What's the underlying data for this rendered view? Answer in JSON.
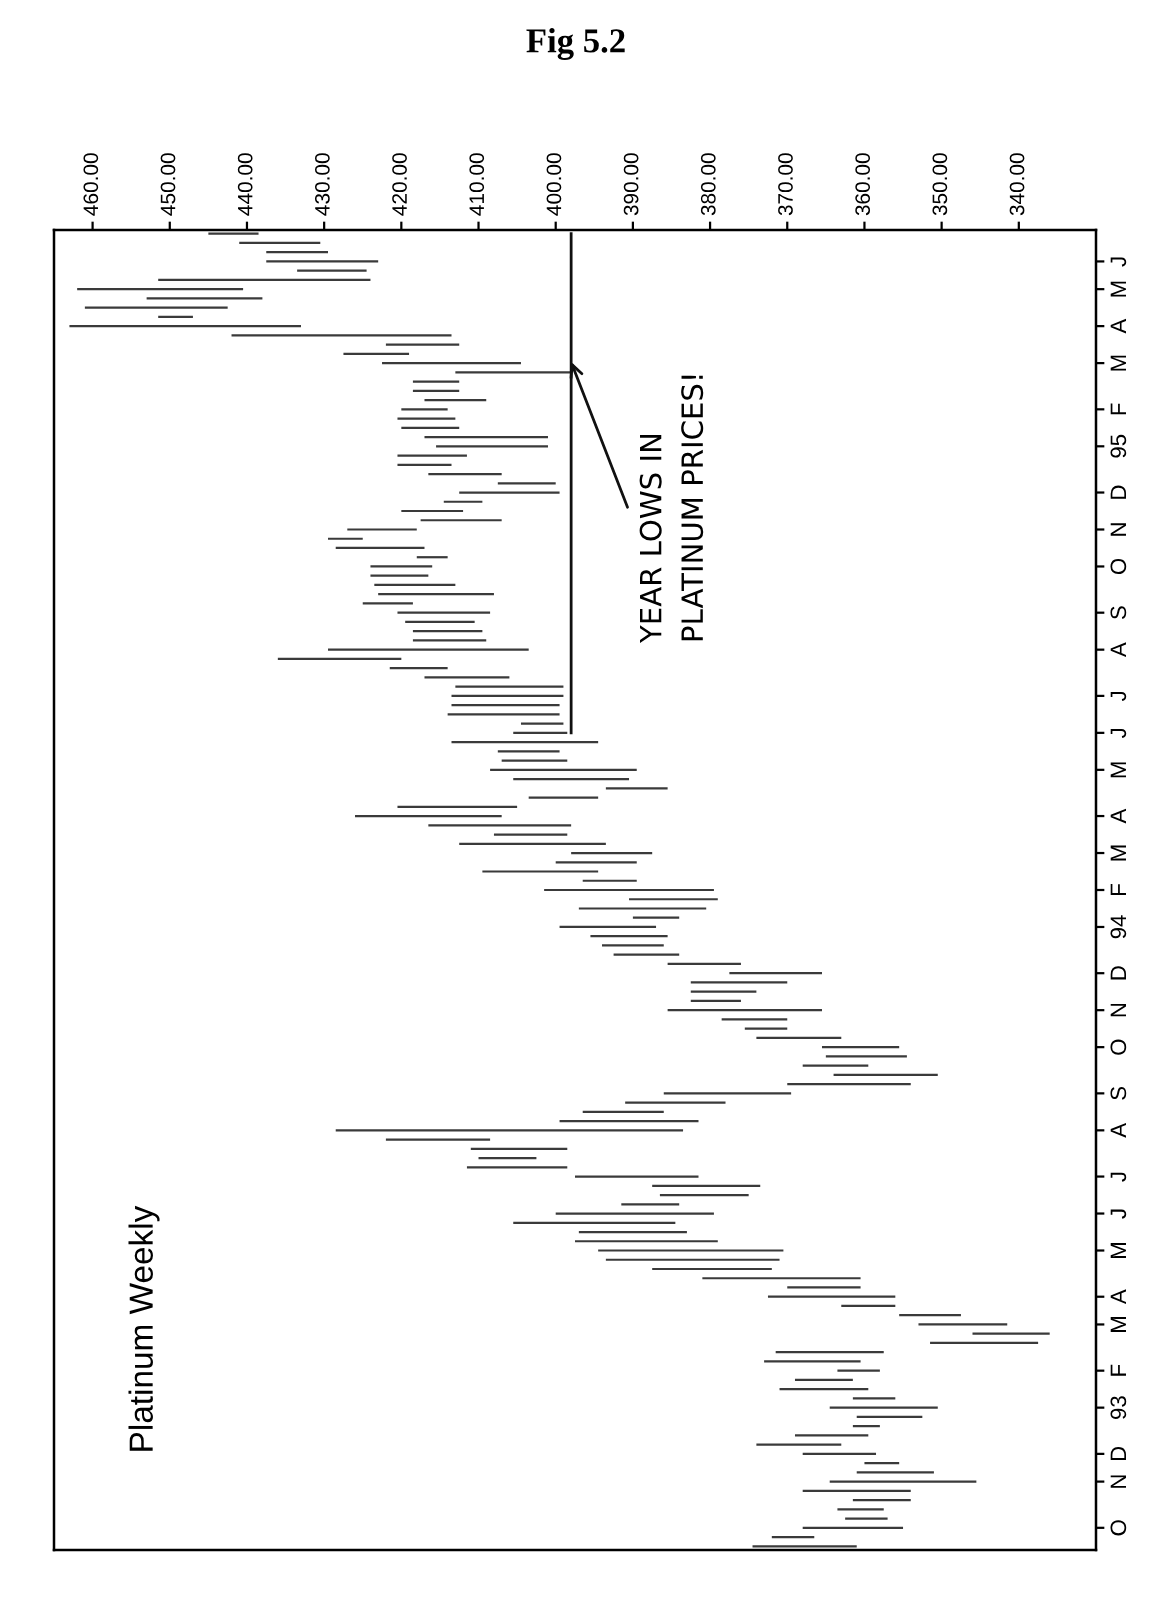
{
  "chart_data": {
    "type": "bar",
    "orientation": "horizontal",
    "title": "Fig 5.2",
    "subtitle": "Platinum Weekly",
    "annotations": [
      {
        "text": "YEAR LOWS IN\nPLATINUM PRICES!",
        "x": 398
      }
    ],
    "categories": [
      null,
      null,
      null,
      "J",
      null,
      null,
      "M",
      null,
      null,
      null,
      "A",
      null,
      null,
      null,
      "M",
      null,
      null,
      null,
      null,
      "F",
      null,
      null,
      null,
      "95",
      null,
      null,
      null,
      null,
      "D",
      null,
      null,
      null,
      "N",
      null,
      null,
      null,
      "O",
      null,
      null,
      null,
      null,
      "S",
      null,
      null,
      null,
      "A",
      null,
      null,
      null,
      null,
      "J",
      null,
      null,
      null,
      "J",
      null,
      null,
      null,
      "M",
      null,
      null,
      null,
      null,
      "A",
      null,
      null,
      null,
      "M",
      null,
      null,
      null,
      "F",
      null,
      null,
      null,
      "94",
      null,
      null,
      null,
      null,
      "D",
      null,
      null,
      null,
      "N",
      null,
      null,
      null,
      "O",
      null,
      null,
      null,
      null,
      "S",
      null,
      null,
      null,
      "A",
      null,
      null,
      null,
      null,
      "J",
      null,
      null,
      null,
      "J",
      null,
      null,
      null,
      "M",
      null,
      null,
      null,
      null,
      "A",
      null,
      null,
      "M",
      null,
      null,
      null,
      null,
      "F",
      null,
      null,
      null,
      "93",
      null,
      null,
      null,
      null,
      "D",
      null,
      null,
      "N",
      null,
      null,
      null,
      null,
      "O",
      null,
      null
    ],
    "series": [
      {
        "color": "#3a3a3a",
        "base": [
          438.5,
          430.5,
          429.5,
          423,
          424.5,
          424,
          440.5,
          438,
          442.5,
          447,
          433,
          413.5,
          412.5,
          419,
          404.5,
          398,
          412.5,
          412.5,
          409,
          414,
          413,
          412.5,
          401,
          401,
          411.5,
          413.5,
          407,
          400,
          399.5,
          409.5,
          412,
          407,
          418,
          425,
          417,
          414,
          416,
          416.5,
          413,
          408,
          418.5,
          408.5,
          410.5,
          409.5,
          409,
          403.5,
          420,
          414,
          406,
          399,
          399,
          399.5,
          399.5,
          399,
          398.5,
          394.5,
          399.5,
          398.5,
          389.5,
          390.5,
          385.5,
          394.5,
          405,
          407,
          398,
          398.5,
          393.5,
          387.5,
          389.5,
          394.5,
          389.5,
          379.5,
          379,
          380.5,
          384,
          387,
          385.5,
          386,
          384,
          376,
          365.5,
          370,
          374,
          376,
          365.5,
          370,
          370,
          363,
          355.5,
          354.5,
          359.5,
          350.5,
          354,
          369.5,
          378,
          386,
          381.5,
          383.5,
          408.5,
          398.5,
          402.5,
          398.5,
          381.5,
          373.5,
          375,
          384,
          379.5,
          384.5,
          383,
          379,
          370.5,
          371,
          372,
          360.5,
          360.5,
          356,
          356,
          347.5,
          341.5,
          336,
          337.5,
          357.5,
          360.5,
          358,
          361.5,
          359.5,
          356,
          350.5,
          352.5,
          358,
          359.5,
          363,
          358.5,
          355.5,
          351,
          345.5,
          354,
          354,
          357.5,
          357,
          355,
          366.5,
          361
        ],
        "values": [
          6.5,
          10.5,
          8,
          14.5,
          9,
          27.5,
          21.5,
          15,
          18.5,
          4.5,
          30,
          28.5,
          9.5,
          8.5,
          18,
          15,
          6,
          6,
          8,
          6,
          7.5,
          7.5,
          16,
          14.5,
          9,
          7,
          9.5,
          7.5,
          13,
          5,
          8,
          10.5,
          9,
          4.5,
          11.5,
          4,
          8,
          7.5,
          10.5,
          15,
          6.5,
          12,
          9,
          9,
          9.5,
          26,
          16,
          7.5,
          11,
          14,
          14.5,
          14,
          14.5,
          5.5,
          7,
          19,
          8,
          8.5,
          19,
          15,
          8,
          9,
          15.5,
          19,
          18.5,
          9.5,
          19,
          10.5,
          10.5,
          15,
          7,
          22,
          11.5,
          16.5,
          6,
          12.5,
          10,
          8,
          8.5,
          9.5,
          12,
          12.5,
          8.5,
          6.5,
          20,
          8.5,
          5.5,
          11,
          10,
          10.5,
          8.5,
          13.5,
          16,
          16.5,
          13,
          10.5,
          18,
          45,
          13.5,
          12.5,
          7.5,
          13,
          16,
          14,
          11.5,
          7.5,
          20.5,
          21,
          14,
          18.5,
          24,
          22.5,
          15.5,
          20.5,
          9.5,
          16.5,
          7,
          8,
          11.5,
          10,
          14,
          14,
          12.5,
          5.5,
          7.5,
          11.5,
          5.5,
          14,
          8.5,
          3.5,
          9.5,
          11,
          9.5,
          4.5,
          10,
          19,
          14,
          7.5,
          6,
          5.5,
          13,
          5.5,
          13.5
        ]
      },
      {
        "type": "line",
        "color": "#111111",
        "values": [
          398,
          398,
          398,
          398,
          398,
          398,
          398,
          398,
          398,
          398,
          398,
          398,
          398,
          398,
          398,
          398,
          398,
          398,
          398,
          398,
          398,
          398,
          398,
          398,
          398,
          398,
          398,
          398,
          398,
          398,
          398,
          398,
          398,
          398,
          398,
          398,
          398,
          398,
          398,
          398,
          398,
          398,
          398,
          398,
          398,
          398,
          398,
          398,
          398,
          398,
          398,
          398,
          398,
          398,
          398,
          null,
          null,
          null,
          null,
          null,
          null,
          null,
          null,
          null,
          null,
          null,
          null,
          null,
          null,
          null,
          null,
          null,
          null,
          null,
          null,
          null,
          null,
          null,
          null,
          null,
          null,
          null,
          null,
          null,
          null,
          null,
          null,
          null,
          null,
          null,
          null,
          null,
          null,
          null,
          null,
          null,
          null,
          null,
          null,
          null,
          null,
          null,
          null,
          null,
          null,
          null,
          null,
          null,
          null,
          null,
          null,
          null,
          null,
          null,
          null,
          null,
          null,
          null,
          null,
          null,
          null,
          null,
          null,
          null,
          null,
          null,
          null,
          null,
          null,
          null,
          null,
          null,
          null,
          null,
          null,
          null,
          null,
          null,
          null,
          null,
          null,
          null,
          null
        ]
      }
    ],
    "xlim": [
      465,
      330
    ],
    "xticks": [
      {
        "value": 460,
        "label": "460.00"
      },
      {
        "value": 450,
        "label": "450.00"
      },
      {
        "value": 440,
        "label": "440.00"
      },
      {
        "value": 430,
        "label": "430.00"
      },
      {
        "value": 420,
        "label": "420.00"
      },
      {
        "value": 410,
        "label": "410.00"
      },
      {
        "value": 400,
        "label": "400.00"
      },
      {
        "value": 390,
        "label": "390.00"
      },
      {
        "value": 380,
        "label": "380.00"
      },
      {
        "value": 370,
        "label": "370.00"
      },
      {
        "value": 360,
        "label": "360.00"
      },
      {
        "value": 350,
        "label": "350.00"
      },
      {
        "value": 340,
        "label": "340.00"
      }
    ]
  }
}
